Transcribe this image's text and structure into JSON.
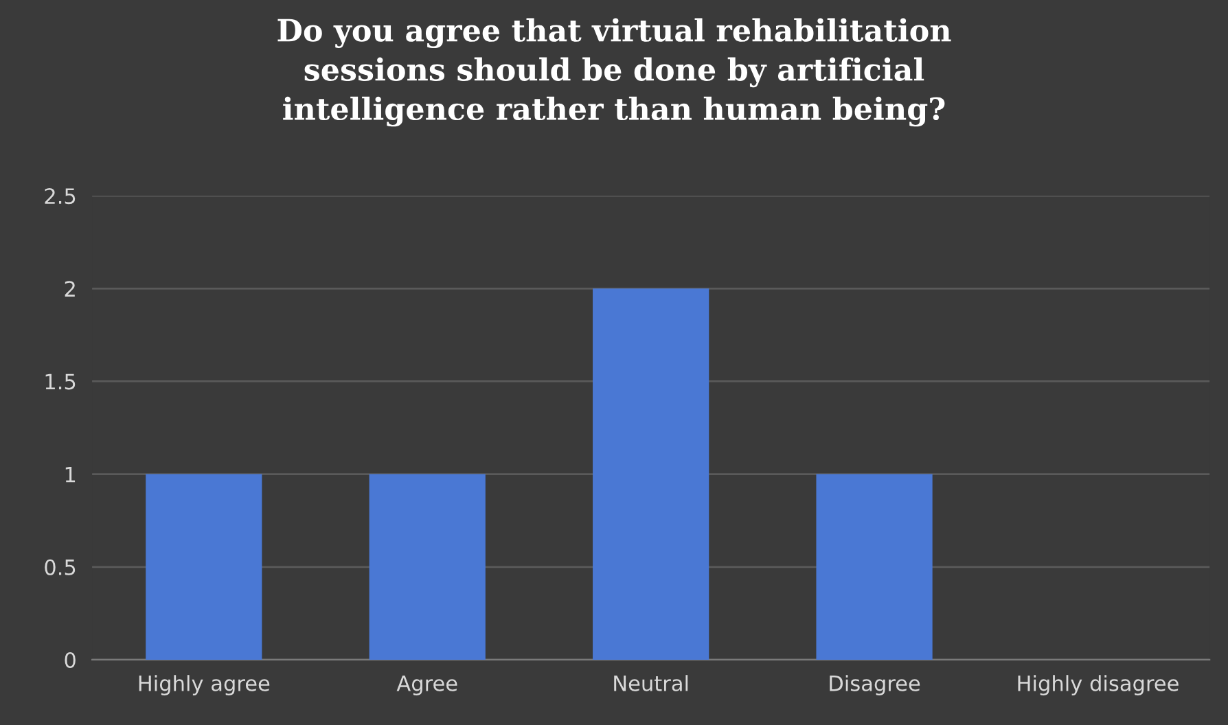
{
  "chart_data": {
    "type": "bar",
    "title": "Do you agree that virtual rehabilitation\nsessions should be done by artificial\nintelligence rather than human being?",
    "categories": [
      "Highly agree",
      "Agree",
      "Neutral",
      "Disagree",
      "Highly disagree"
    ],
    "values": [
      1,
      1,
      2,
      1,
      0
    ],
    "color": "#4a78d4",
    "ylim": [
      0,
      2.5
    ],
    "yticks": [
      0,
      0.5,
      1,
      1.5,
      2,
      2.5
    ],
    "grid": "y"
  }
}
